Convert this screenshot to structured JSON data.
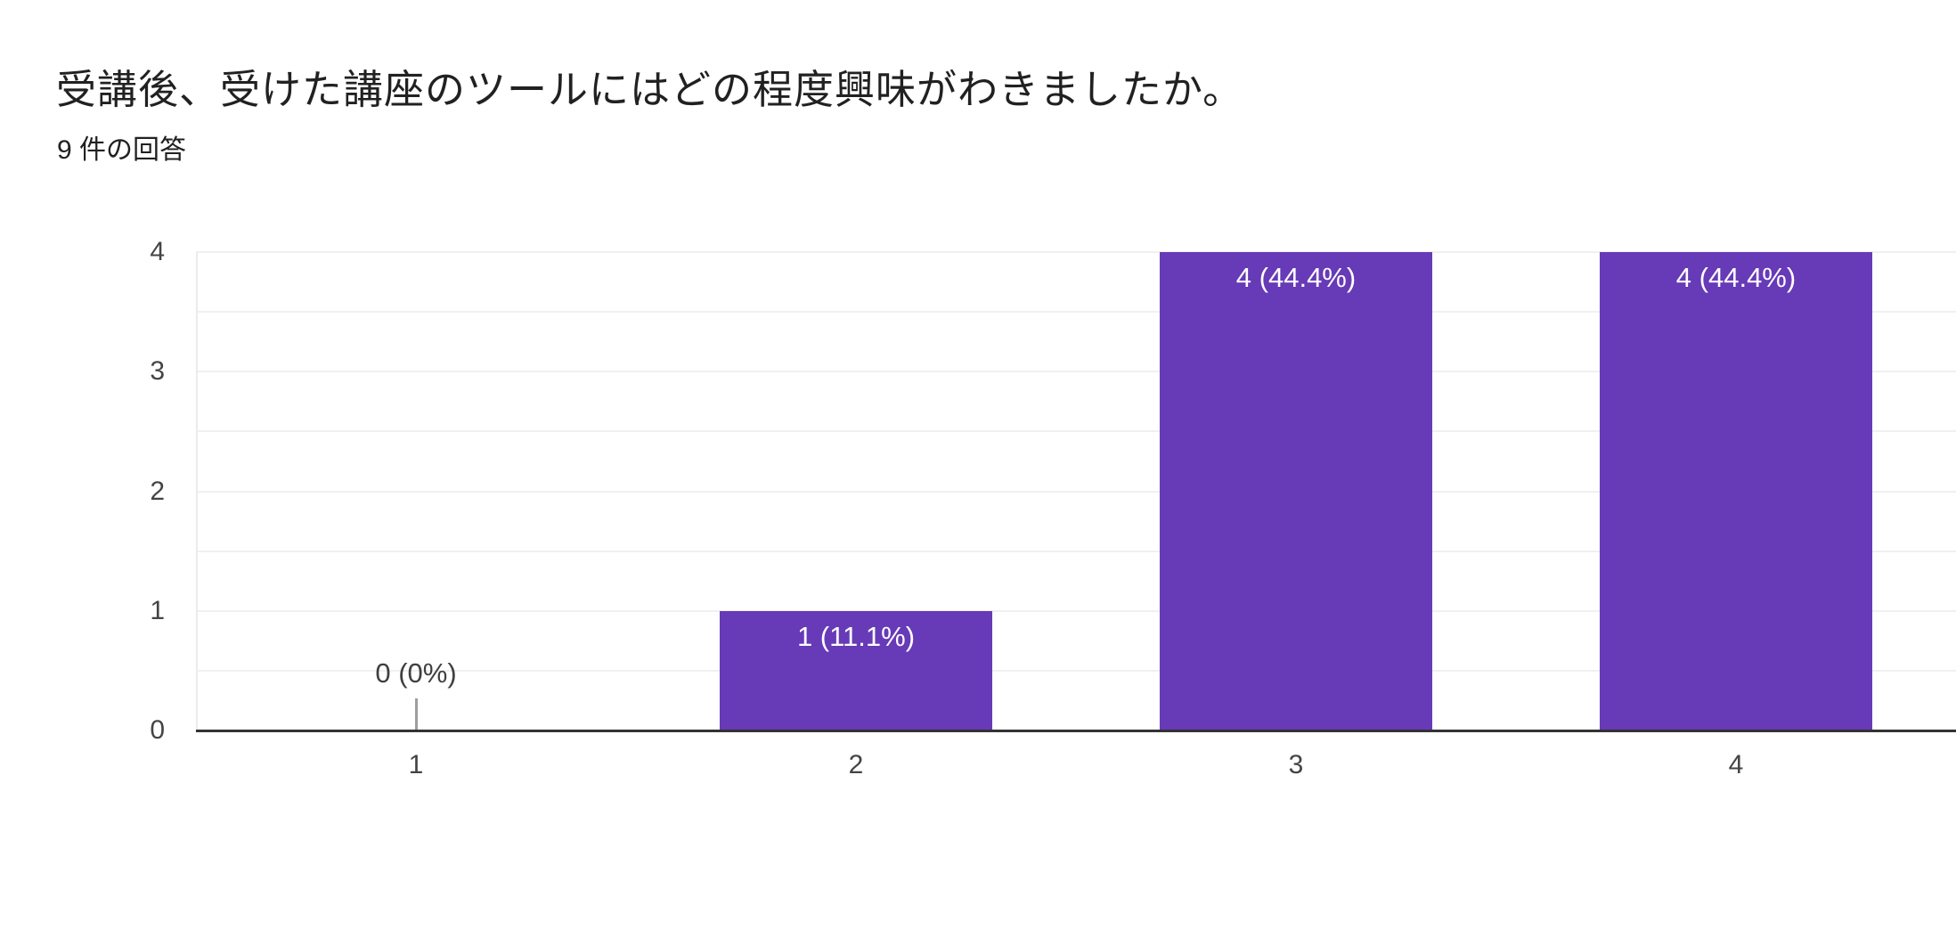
{
  "header": {
    "title": "受講後、受けた講座のツールにはどの程度興味がわきましたか。",
    "response_count": "9 件の回答"
  },
  "chart_data": {
    "type": "bar",
    "title": "受講後、受けた講座のツールにはどの程度興味がわきましたか。",
    "subtitle": "9 件の回答",
    "categories": [
      "1",
      "2",
      "3",
      "4"
    ],
    "values": [
      0,
      1,
      4,
      4
    ],
    "bar_labels": [
      "0 (0%)",
      "1 (11.1%)",
      "4 (44.4%)",
      "4 (44.4%)"
    ],
    "xlabel": "",
    "ylabel": "",
    "ylim": [
      0,
      4
    ],
    "yticks": [
      0,
      1,
      2,
      3,
      4
    ],
    "grid": "on",
    "grid_step": 0.5,
    "legend": "none",
    "colors": {
      "bar": "#673ab7",
      "bar_label_text": "#ffffff",
      "axis_label": "#444444",
      "zero_label_text": "#404040",
      "zero_tick": "#9e9e9e",
      "baseline": "#333333",
      "gridline": "#f0f0f0",
      "title_text": "#212121",
      "background": "#ffffff"
    }
  }
}
